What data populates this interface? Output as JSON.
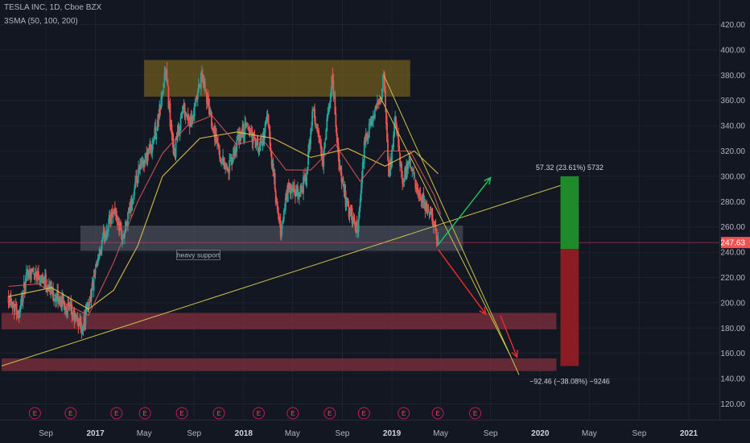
{
  "colors": {
    "background": "#131722",
    "grid": "#1e2230",
    "up": "#26a69a",
    "down": "#ef5350",
    "sma50": "#e65a5a",
    "sma100": "#e6c84a",
    "trend_line": "#c9c24a",
    "resistance_zone": "#6e5b1e",
    "support_zone": "#5a5f6b",
    "demand_zone": "#7a2e3c",
    "price_tag": "#ef5350",
    "arrow_up": "#22c55e",
    "arrow_down": "#ef2b2b",
    "measure_gain": "#1e8a2a",
    "measure_loss": "#8a1c24",
    "earnings_marker": "#c2185b"
  },
  "header": {
    "title": "TESLA INC, 1D, Cboe BZX",
    "indicator": "3SMA (50, 100, 200)"
  },
  "annotations": {
    "support_label": "heavy support",
    "gain_label": "57.32 (23.61%) 5732",
    "loss_label": "−92.46 (−38.08%) −9246",
    "earnings_symbol": "E",
    "current_price": "247.63"
  },
  "chart_data": {
    "type": "candlestick",
    "title": "TESLA INC, 1D, Cboe BZX",
    "ylim": [
      106,
      432
    ],
    "y_ticks": [
      120,
      140,
      160,
      180,
      200,
      220,
      240,
      260,
      280,
      300,
      320,
      340,
      360,
      380,
      400,
      420
    ],
    "y_tick_labels": [
      "120.00",
      "140.00",
      "160.00",
      "180.00",
      "200.00",
      "220.00",
      "240.00",
      "260.00",
      "280.00",
      "300.00",
      "320.00",
      "340.00",
      "360.00",
      "380.00",
      "400.00",
      "420.00"
    ],
    "x_ticks": [
      {
        "label": "Sep",
        "date": "2016-09-01"
      },
      {
        "label": "2017",
        "date": "2017-01-01"
      },
      {
        "label": "May",
        "date": "2017-05-01"
      },
      {
        "label": "Sep",
        "date": "2017-09-01"
      },
      {
        "label": "2018",
        "date": "2018-01-01"
      },
      {
        "label": "May",
        "date": "2018-05-01"
      },
      {
        "label": "Sep",
        "date": "2018-09-01"
      },
      {
        "label": "2019",
        "date": "2019-01-01"
      },
      {
        "label": "May",
        "date": "2019-05-01"
      },
      {
        "label": "Sep",
        "date": "2019-09-01"
      },
      {
        "label": "2020",
        "date": "2020-01-01"
      },
      {
        "label": "May",
        "date": "2020-05-01"
      },
      {
        "label": "Sep",
        "date": "2020-09-01"
      },
      {
        "label": "2021",
        "date": "2021-01-01"
      }
    ],
    "price_path": [
      [
        "2016-06-01",
        206
      ],
      [
        "2016-06-25",
        192
      ],
      [
        "2016-07-20",
        225
      ],
      [
        "2016-08-20",
        222
      ],
      [
        "2016-09-25",
        204
      ],
      [
        "2016-10-15",
        200
      ],
      [
        "2016-11-15",
        186
      ],
      [
        "2016-12-01",
        181
      ],
      [
        "2016-12-25",
        213
      ],
      [
        "2017-01-20",
        250
      ],
      [
        "2017-02-15",
        275
      ],
      [
        "2017-03-10",
        250
      ],
      [
        "2017-03-30",
        278
      ],
      [
        "2017-04-20",
        305
      ],
      [
        "2017-05-20",
        325
      ],
      [
        "2017-06-05",
        345
      ],
      [
        "2017-06-23",
        385
      ],
      [
        "2017-07-12",
        315
      ],
      [
        "2017-08-05",
        355
      ],
      [
        "2017-08-25",
        340
      ],
      [
        "2017-09-20",
        380
      ],
      [
        "2017-10-10",
        350
      ],
      [
        "2017-11-05",
        315
      ],
      [
        "2017-11-25",
        305
      ],
      [
        "2017-12-20",
        330
      ],
      [
        "2018-01-10",
        340
      ],
      [
        "2018-02-08",
        320
      ],
      [
        "2018-03-01",
        345
      ],
      [
        "2018-03-25",
        270
      ],
      [
        "2018-04-02",
        255
      ],
      [
        "2018-04-20",
        290
      ],
      [
        "2018-05-15",
        285
      ],
      [
        "2018-06-05",
        300
      ],
      [
        "2018-06-20",
        355
      ],
      [
        "2018-07-15",
        310
      ],
      [
        "2018-08-07",
        380
      ],
      [
        "2018-08-25",
        305
      ],
      [
        "2018-09-10",
        280
      ],
      [
        "2018-09-28",
        264
      ],
      [
        "2018-10-10",
        256
      ],
      [
        "2018-10-25",
        325
      ],
      [
        "2018-11-15",
        345
      ],
      [
        "2018-12-01",
        360
      ],
      [
        "2018-12-12",
        379
      ],
      [
        "2018-12-24",
        298
      ],
      [
        "2019-01-10",
        345
      ],
      [
        "2019-01-25",
        298
      ],
      [
        "2019-02-15",
        310
      ],
      [
        "2019-03-05",
        285
      ],
      [
        "2019-03-25",
        275
      ],
      [
        "2019-04-10",
        268
      ],
      [
        "2019-04-25",
        248
      ]
    ],
    "sma50": [
      [
        "2016-06-01",
        213
      ],
      [
        "2016-08-15",
        215
      ],
      [
        "2016-10-15",
        200
      ],
      [
        "2016-12-15",
        190
      ],
      [
        "2017-02-15",
        232
      ],
      [
        "2017-04-15",
        280
      ],
      [
        "2017-06-15",
        318
      ],
      [
        "2017-08-15",
        340
      ],
      [
        "2017-10-15",
        348
      ],
      [
        "2017-12-15",
        325
      ],
      [
        "2018-02-15",
        330
      ],
      [
        "2018-04-15",
        305
      ],
      [
        "2018-06-15",
        305
      ],
      [
        "2018-08-15",
        325
      ],
      [
        "2018-10-15",
        296
      ],
      [
        "2018-12-15",
        320
      ],
      [
        "2019-02-15",
        320
      ],
      [
        "2019-04-15",
        285
      ],
      [
        "2019-05-01",
        270
      ]
    ],
    "sma100": [
      [
        "2016-06-01",
        205
      ],
      [
        "2016-09-15",
        212
      ],
      [
        "2016-12-15",
        195
      ],
      [
        "2017-02-15",
        210
      ],
      [
        "2017-04-15",
        245
      ],
      [
        "2017-06-15",
        300
      ],
      [
        "2017-09-15",
        330
      ],
      [
        "2017-12-15",
        335
      ],
      [
        "2018-03-15",
        330
      ],
      [
        "2018-06-15",
        315
      ],
      [
        "2018-09-15",
        322
      ],
      [
        "2018-12-15",
        308
      ],
      [
        "2019-02-25",
        320
      ],
      [
        "2019-04-25",
        302
      ]
    ],
    "zones": [
      {
        "name": "resistance",
        "from": "2017-05-01",
        "to": "2019-02-15",
        "high": 392,
        "low": 363
      },
      {
        "name": "support",
        "from": "2016-11-25",
        "to": "2019-06-25",
        "high": 261,
        "low": 241
      },
      {
        "name": "demand",
        "from": "2016-05-15",
        "to": "2020-02-10",
        "high": 192,
        "low": 179
      },
      {
        "name": "demand",
        "from": "2016-05-15",
        "to": "2020-02-10",
        "high": 156,
        "low": 146
      }
    ],
    "trend_lines": [
      {
        "from": [
          "2016-05-15",
          150
        ],
        "to": [
          "2020-04-01",
          297
        ]
      },
      {
        "from": [
          "2018-12-12",
          380
        ],
        "to": [
          "2019-11-10",
          143
        ]
      },
      {
        "from": [
          "2018-12-01",
          364
        ],
        "to": [
          "2019-10-20",
          158
        ]
      }
    ],
    "arrows": [
      {
        "from": [
          "2019-04-25",
          246
        ],
        "to": [
          "2019-09-01",
          299
        ],
        "direction": "up"
      },
      {
        "from": [
          "2019-04-25",
          242
        ],
        "to": [
          "2019-08-20",
          191
        ],
        "direction": "down"
      },
      {
        "from": [
          "2019-09-25",
          190
        ],
        "to": [
          "2019-11-05",
          157
        ],
        "direction": "down"
      }
    ],
    "measure": {
      "date_from": "2020-02-20",
      "date_to": "2020-04-05",
      "entry": 242.5,
      "target_high": 300,
      "target_low": 150
    },
    "current_price": 247.63,
    "earnings_dates": [
      "2016-08-05",
      "2016-11-01",
      "2017-02-22",
      "2017-05-03",
      "2017-08-02",
      "2017-11-01",
      "2018-02-07",
      "2018-05-02",
      "2018-08-01",
      "2018-10-24",
      "2019-01-30",
      "2019-04-24",
      "2019-07-25"
    ]
  }
}
